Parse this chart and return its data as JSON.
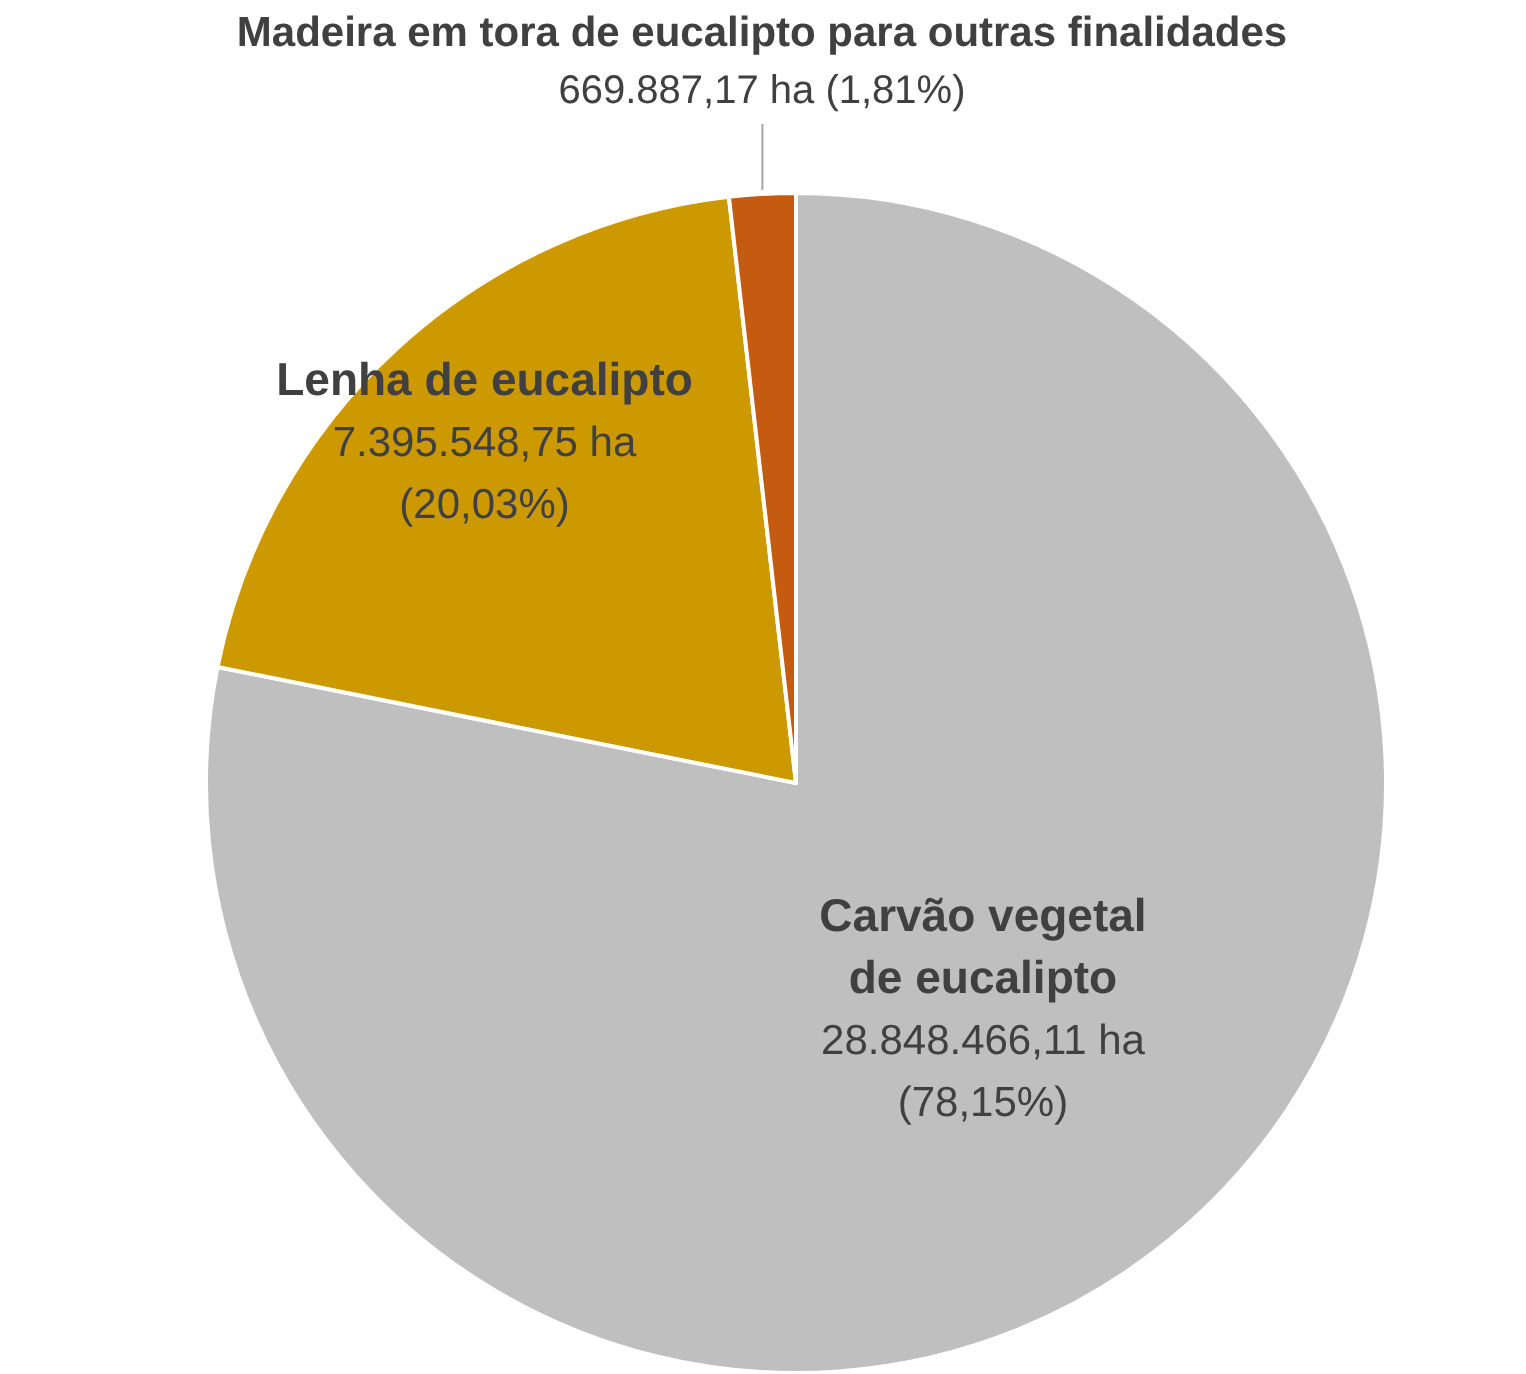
{
  "chart_data": {
    "type": "pie",
    "categories": [
      "Carvão vegetal de eucalipto",
      "Lenha de eucalipto",
      "Madeira em tora de eucalipto para outras finalidades"
    ],
    "values": [
      28848466.11,
      7395548.75,
      669887.17
    ],
    "value_labels": [
      "28.848.466,11 ha (78,15%)",
      "7.395.548,75 ha (20,03%)",
      "669.887,17 ha (1,81%)"
    ],
    "colors": [
      "#bfbfbf",
      "#cc9900",
      "#c55a11"
    ],
    "legend": false
  }
}
